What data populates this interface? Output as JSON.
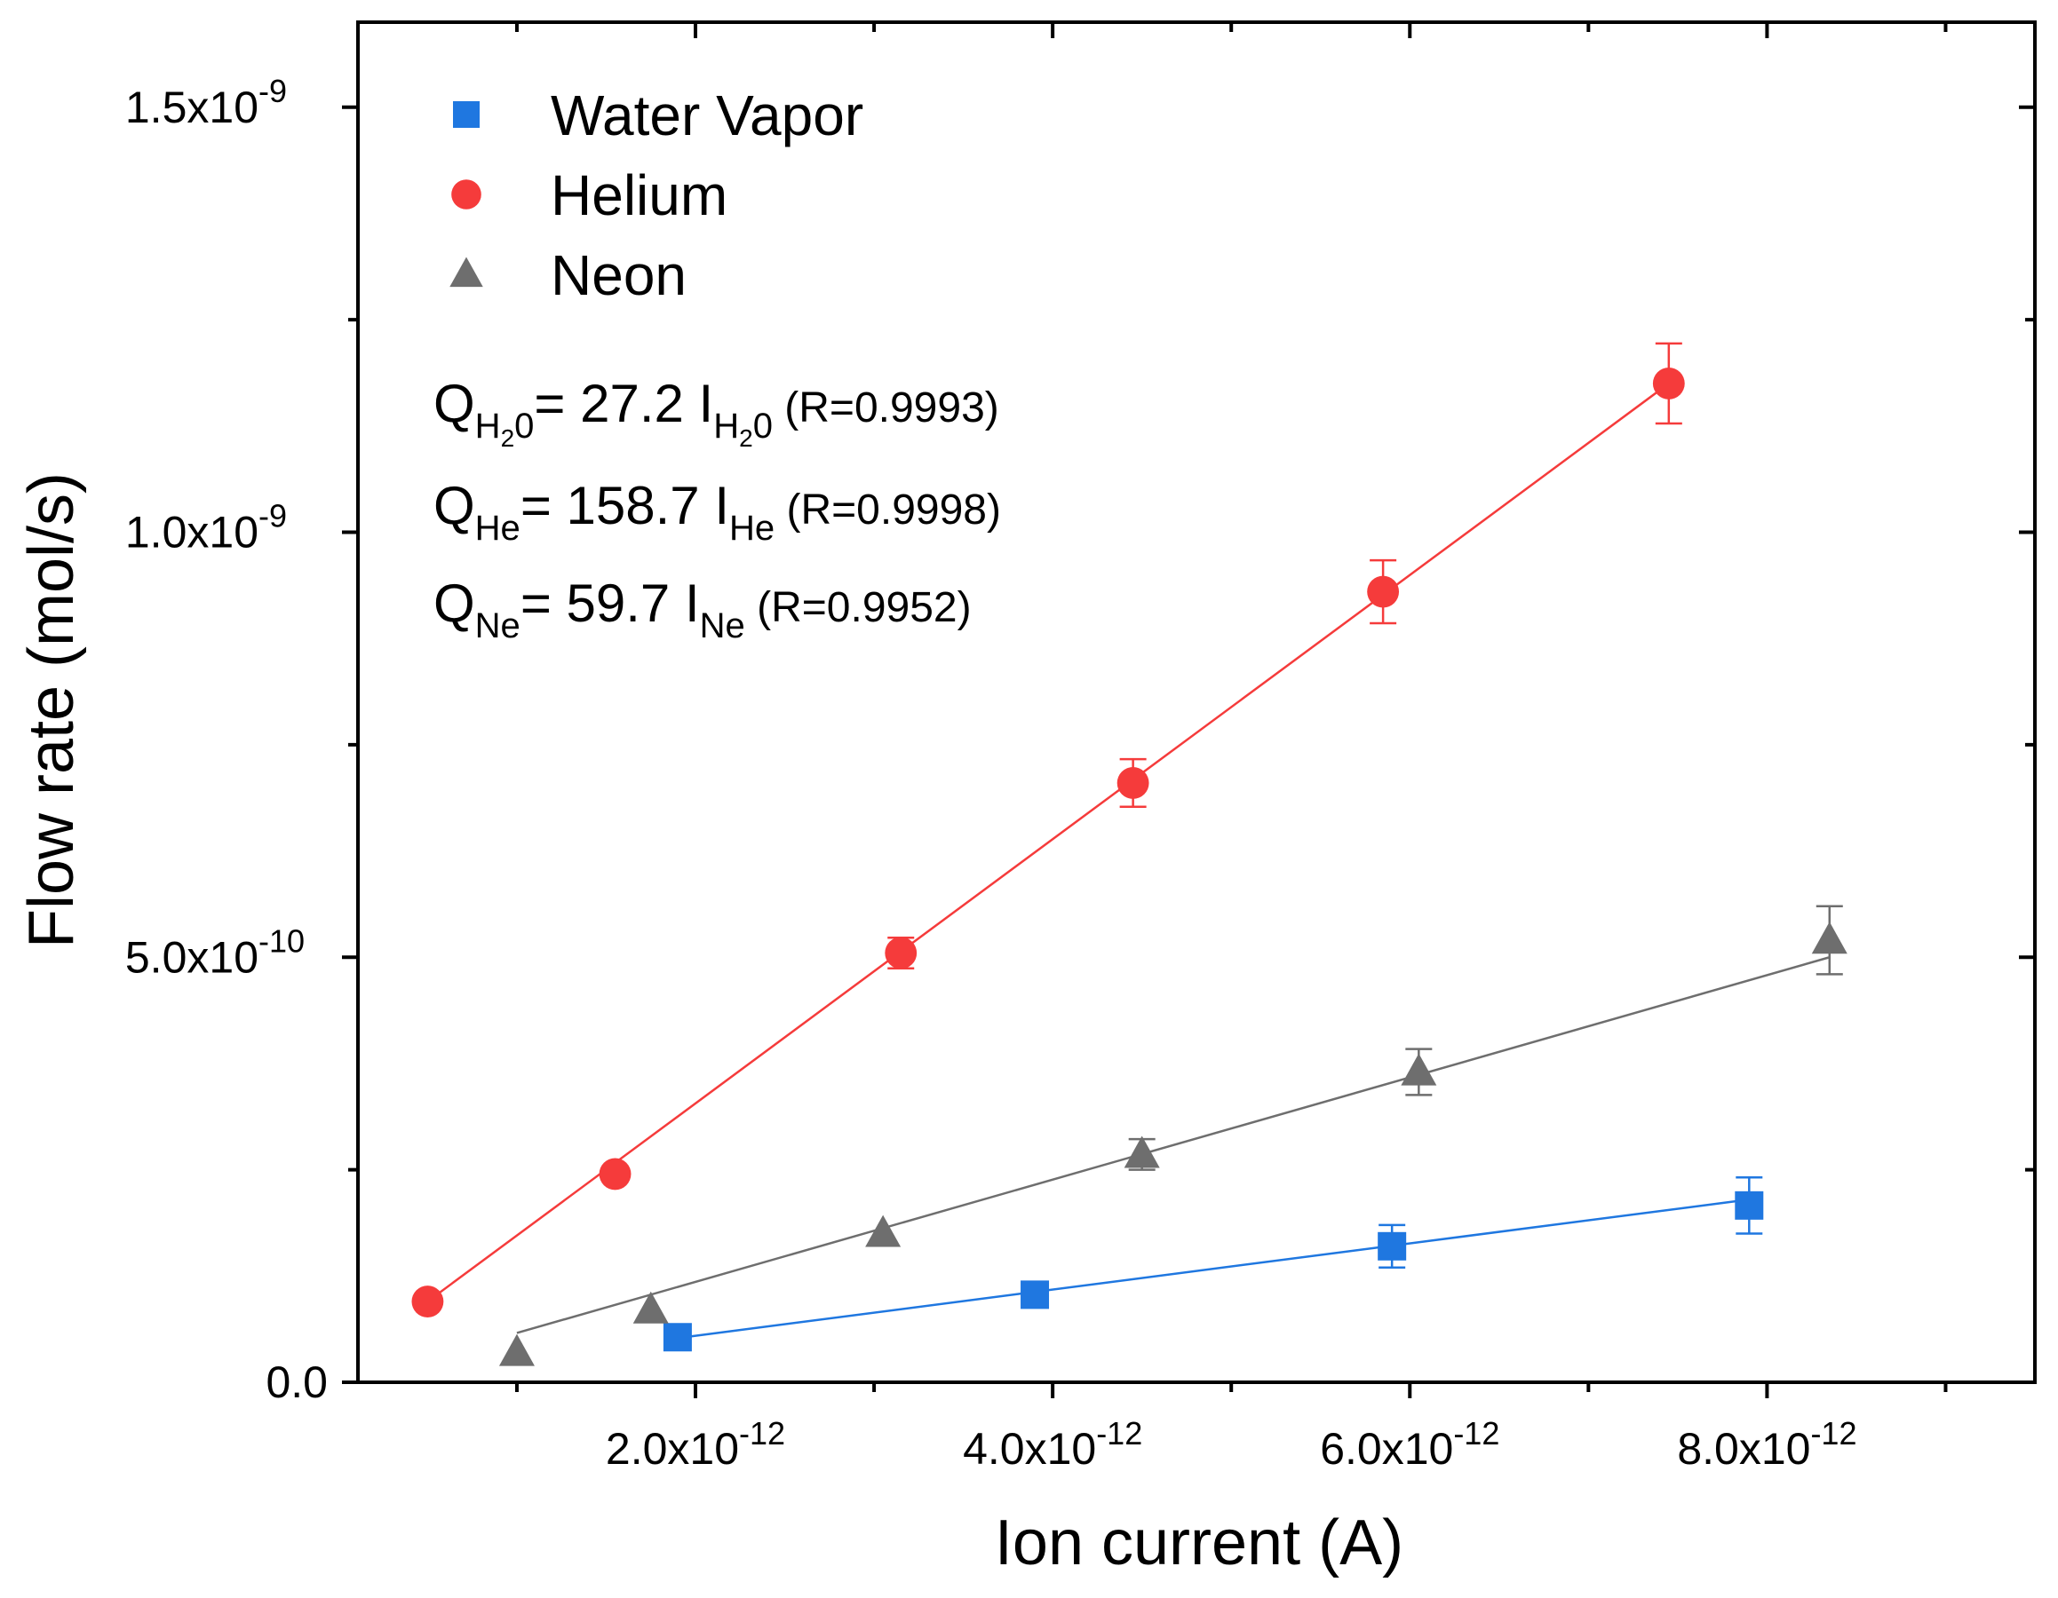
{
  "chart_data": {
    "type": "scatter",
    "xlabel": "Ion current (A)",
    "ylabel": "Flow rate (mol/s)",
    "xlim": [
      1.1e-13,
      9.5e-12
    ],
    "ylim": [
      0,
      1.6e-09
    ],
    "x_ticks": [
      {
        "value": 2e-12,
        "mantissa": "2.0x10",
        "exp": "-12"
      },
      {
        "value": 4e-12,
        "mantissa": "4.0x10",
        "exp": "-12"
      },
      {
        "value": 6e-12,
        "mantissa": "6.0x10",
        "exp": "-12"
      },
      {
        "value": 8e-12,
        "mantissa": "8.0x10",
        "exp": "-12"
      }
    ],
    "x_minor_ticks": [
      1e-12,
      3e-12,
      5e-12,
      7e-12,
      9e-12
    ],
    "y_ticks": [
      {
        "value": 0,
        "mantissa": "0.0",
        "exp": ""
      },
      {
        "value": 5e-10,
        "mantissa": "5.0x10",
        "exp": "-10"
      },
      {
        "value": 1e-09,
        "mantissa": "1.0x10",
        "exp": "-9"
      },
      {
        "value": 1.5e-09,
        "mantissa": "1.5x10",
        "exp": "-9"
      }
    ],
    "y_minor_ticks": [
      2.5e-10,
      7.5e-10,
      1.25e-09
    ],
    "series": [
      {
        "name": "Water Vapor",
        "marker": "square",
        "color": "#1f77e0",
        "x": [
          1.9e-12,
          3.9e-12,
          5.9e-12,
          7.9e-12
        ],
        "y": [
          5.3e-11,
          1.03e-10,
          1.6e-10,
          2.08e-10
        ],
        "yerr": [
          0,
          0,
          2.5e-11,
          3.3e-11
        ],
        "fit": {
          "x": [
            1.9e-12,
            7.9e-12
          ],
          "y": [
            5.2e-11,
            2.15e-10
          ]
        }
      },
      {
        "name": "Helium",
        "marker": "circle",
        "color": "#f53b3b",
        "x": [
          5e-13,
          1.55e-12,
          3.15e-12,
          4.45e-12,
          5.85e-12,
          7.45e-12
        ],
        "y": [
          9.5e-11,
          2.45e-10,
          5.05e-10,
          7.05e-10,
          9.3e-10,
          1.175e-09
        ],
        "yerr": [
          0,
          0,
          1.8e-11,
          2.8e-11,
          3.7e-11,
          4.7e-11
        ],
        "fit": {
          "x": [
            5e-13,
            7.45e-12
          ],
          "y": [
            9.5e-11,
            1.175e-09
          ]
        }
      },
      {
        "name": "Neon",
        "marker": "triangle",
        "color": "#6e6e6e",
        "x": [
          1e-12,
          1.75e-12,
          3.05e-12,
          4.5e-12,
          6.05e-12,
          8.35e-12
        ],
        "y": [
          3.5e-11,
          8.5e-11,
          1.75e-10,
          2.68e-10,
          3.65e-10,
          5.2e-10
        ],
        "yerr": [
          0,
          0,
          0,
          1.8e-11,
          2.7e-11,
          4e-11
        ],
        "fit": {
          "x": [
            1e-12,
            8.35e-12
          ],
          "y": [
            5.8e-11,
            5e-10
          ]
        }
      }
    ],
    "legend": {
      "position": "top-left",
      "entries": [
        "Water Vapor",
        "Helium",
        "Neon"
      ]
    },
    "annotations": [
      {
        "q_sub": "H",
        "q_subsub": "2",
        "q_sub_end": "0",
        "eq": "= 27.2 I",
        "i_sub": "H",
        "i_subsub": "2",
        "i_sub_end": "0",
        "r": "(R=0.9993)"
      },
      {
        "q_sub": "He",
        "q_subsub": "",
        "q_sub_end": "",
        "eq": "= 158.7 I",
        "i_sub": "He",
        "i_subsub": "",
        "i_sub_end": "",
        "r": "(R=0.9998)"
      },
      {
        "q_sub": "Ne",
        "q_subsub": "",
        "q_sub_end": "",
        "eq": "= 59.7 I",
        "i_sub": "Ne",
        "i_subsub": "",
        "i_sub_end": "",
        "r": "(R=0.9952)"
      }
    ],
    "q_letter": "Q"
  }
}
